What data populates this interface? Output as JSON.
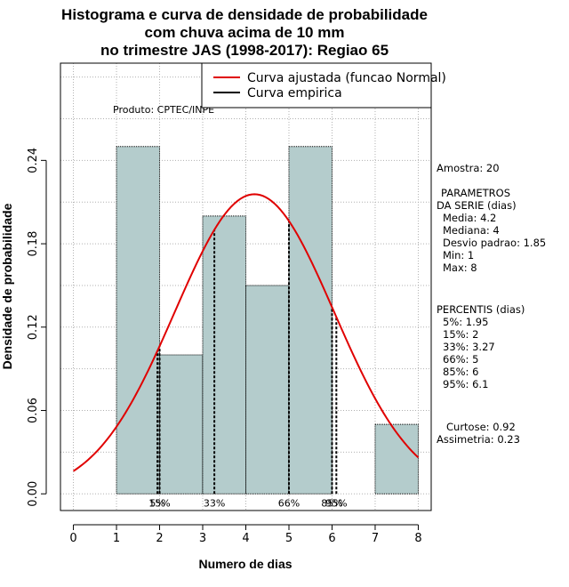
{
  "chart_data": {
    "type": "bar",
    "title_lines": [
      "Histograma e curva de densidade de probabilidade",
      "com chuva acima de 10 mm",
      "no trimestre JAS (1998-2017): Regiao 65"
    ],
    "xlabel": "Numero de dias",
    "ylabel": "Densidade de probabilidade",
    "xlim": [
      -0.3,
      8.3
    ],
    "ylim": [
      -0.012,
      0.31
    ],
    "x_ticks": [
      0,
      1,
      2,
      3,
      4,
      5,
      6,
      7,
      8
    ],
    "y_ticks": [
      0.0,
      0.06,
      0.12,
      0.18,
      0.24
    ],
    "y_tick_labels": [
      "0.00",
      "0.06",
      "0.12",
      "0.18",
      "0.24"
    ],
    "bins": [
      {
        "start": 1,
        "end": 2,
        "value": 0.25
      },
      {
        "start": 2,
        "end": 3,
        "value": 0.1
      },
      {
        "start": 3,
        "end": 4,
        "value": 0.2
      },
      {
        "start": 4,
        "end": 5,
        "value": 0.15
      },
      {
        "start": 5,
        "end": 6,
        "value": 0.25
      },
      {
        "start": 6,
        "end": 7,
        "value": 0.0
      },
      {
        "start": 7,
        "end": 8,
        "value": 0.05
      }
    ],
    "normal_fit": {
      "mean": 4.2,
      "sd": 1.85,
      "x_from": 0,
      "x_to": 8
    },
    "percentile_lines": [
      {
        "x": 1.95,
        "label": "5%"
      },
      {
        "x": 2.0,
        "label": "15%"
      },
      {
        "x": 3.27,
        "label": "33%"
      },
      {
        "x": 5.0,
        "label": "66%"
      },
      {
        "x": 6.0,
        "label": "85%"
      },
      {
        "x": 6.1,
        "label": "95%"
      }
    ],
    "legend": [
      {
        "label": "Curva ajustada (funcao Normal)",
        "color": "#e00000"
      },
      {
        "label": "Curva empirica",
        "color": "#000000"
      }
    ],
    "legend_position": "top-right",
    "product_label": "Produto: CPTEC/INPE",
    "grid": true,
    "colors": {
      "bar_fill": "#b4cccc",
      "curve": "#e00000",
      "grid": "#b0b0b0"
    }
  },
  "stats_panel": {
    "amostra": "Amostra: 20",
    "parametros_title_1": "PARAMETROS",
    "parametros_title_2": "DA SERIE (dias)",
    "media": "Media: 4.2",
    "mediana": "Mediana: 4",
    "desvio": "Desvio padrao: 1.85",
    "min": "Min: 1",
    "max": "Max: 8",
    "percentis_title": "PERCENTIS (dias)",
    "p5": "5%: 1.95",
    "p15": "15%: 2",
    "p33": "33%: 3.27",
    "p66": "66%: 5",
    "p85": "85%: 6",
    "p95": "95%: 6.1",
    "curtose": "Curtose: 0.92",
    "assimetria": "Assimetria: 0.23"
  }
}
